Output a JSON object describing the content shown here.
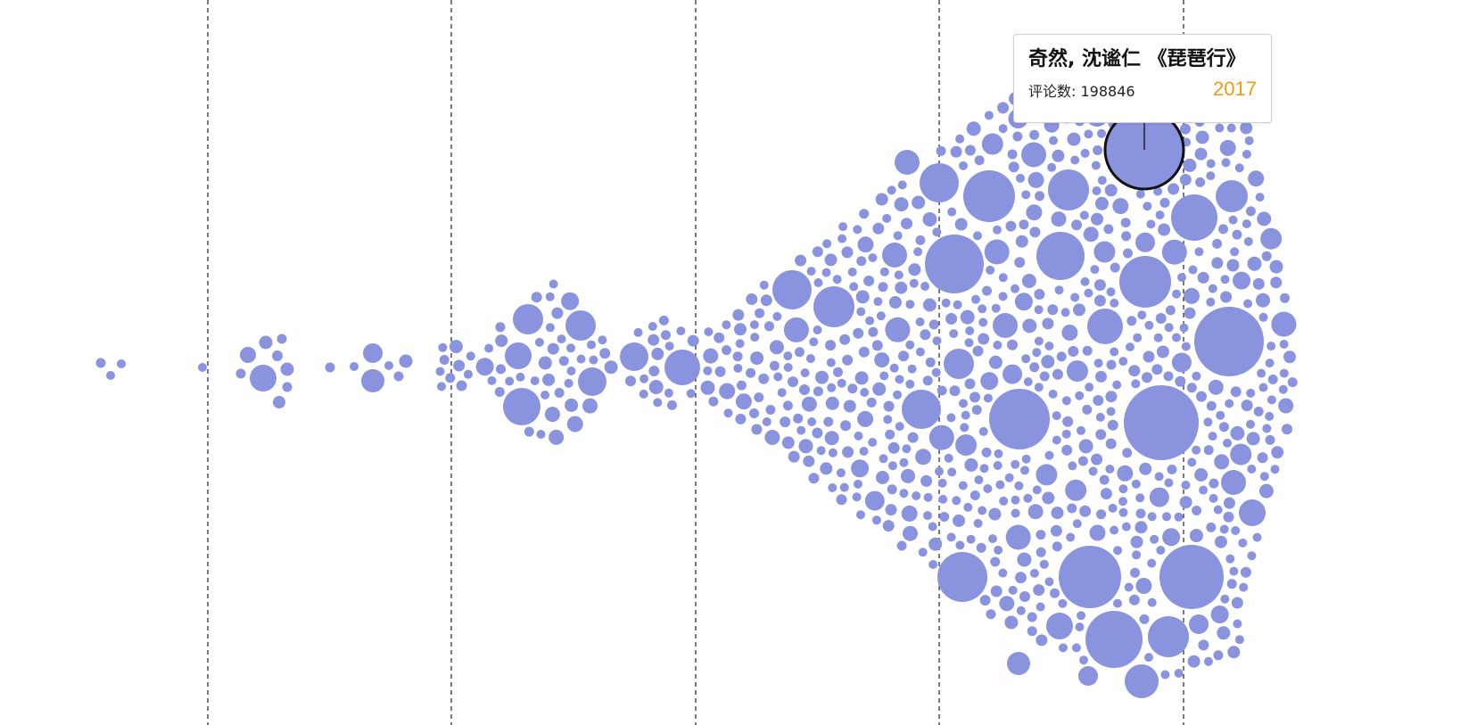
{
  "chart_data": {
    "type": "beeswarm",
    "title": "",
    "xlabel": "",
    "ylabel": "",
    "axis_ticks_printed": false,
    "grid": "vertical dashed separators",
    "bubble_color": "#8a93dd",
    "highlight_stroke": "#111111",
    "highlighted_item": {
      "name": "奇然, 沈谧仁 《琵琶行》",
      "comments_label": "评论数: 198846",
      "comments": 198846,
      "year": "2017"
    },
    "clusters": [
      {
        "band": 0,
        "approx_count": 3,
        "size": "small"
      },
      {
        "band": 1,
        "approx_count": 12,
        "size": "small"
      },
      {
        "band": 1,
        "approx_count": 8,
        "size": "small"
      },
      {
        "band": 2,
        "approx_count": 60,
        "size": "mixed"
      },
      {
        "band": 2,
        "approx_count": 25,
        "size": "mixed"
      },
      {
        "band": 3,
        "approx_count": 300,
        "size": "mixed"
      },
      {
        "band": 4,
        "approx_count": 500,
        "size": "mixed-large"
      },
      {
        "band": 5,
        "approx_count": 120,
        "size": "mixed-large"
      }
    ]
  },
  "tooltip": {
    "title": "奇然, 沈谧仁 《琵琶行》",
    "comments": "评论数: 198846",
    "year": "2017",
    "year_color": "#f39c12"
  }
}
